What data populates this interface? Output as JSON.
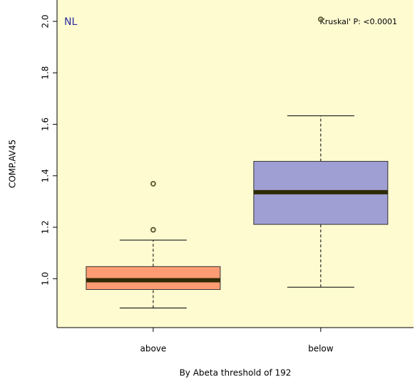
{
  "chart_data": {
    "type": "box",
    "annotations": [
      "NL",
      "Kruskal' P: <0.0001"
    ],
    "ylabel": "COMP.AV45",
    "xlabel": "By Abeta threshold of 192",
    "categories": [
      "above",
      "below"
    ],
    "colors": [
      "#fd9c73",
      "#9f9fd4"
    ],
    "low": [
      0.886,
      0.967
    ],
    "q1": [
      0.958,
      1.211
    ],
    "median": [
      0.994,
      1.336
    ],
    "q3": [
      1.047,
      1.456
    ],
    "high": [
      1.15,
      1.633
    ],
    "outliers": [
      [
        1.19,
        1.369
      ],
      [
        2.008
      ]
    ],
    "ylim": [
      0.81,
      2.083
    ],
    "yticks": [
      {
        "value": 1,
        "label": "1.0"
      },
      {
        "value": 1.2,
        "label": "1.2"
      },
      {
        "value": 1.4,
        "label": "1.4"
      },
      {
        "value": 1.6,
        "label": "1.6"
      },
      {
        "value": 1.8,
        "label": "1.8"
      },
      {
        "value": 2,
        "label": "2.0"
      }
    ]
  }
}
